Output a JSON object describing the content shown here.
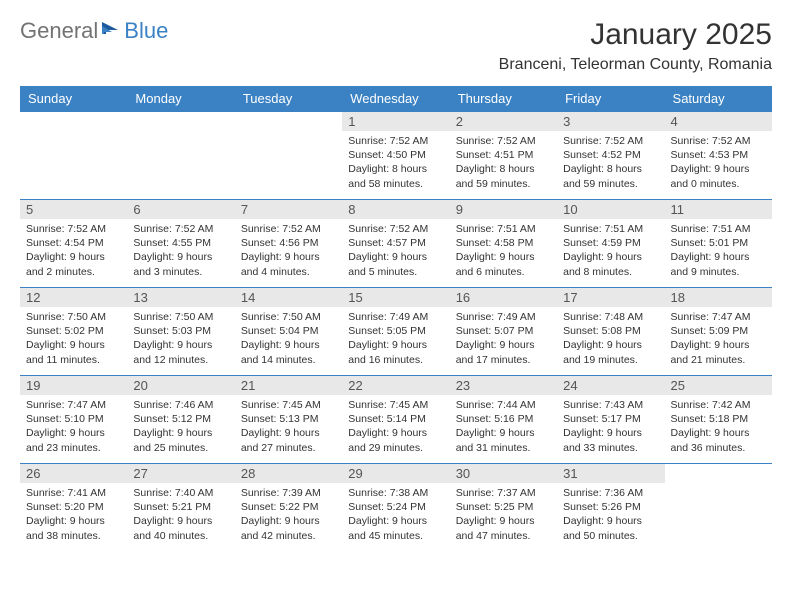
{
  "logo": {
    "general": "General",
    "blue": "Blue"
  },
  "title": "January 2025",
  "location": "Branceni, Teleorman County, Romania",
  "colors": {
    "header_bg": "#3b82c4",
    "header_text": "#ffffff",
    "daynum_bg": "#e8e8e8",
    "daynum_text": "#555555",
    "body_text": "#333333",
    "border": "#3b82c4",
    "logo_gray": "#737373",
    "logo_blue": "#3b82c4",
    "page_bg": "#ffffff"
  },
  "day_headers": [
    "Sunday",
    "Monday",
    "Tuesday",
    "Wednesday",
    "Thursday",
    "Friday",
    "Saturday"
  ],
  "weeks": [
    [
      {
        "n": "",
        "sr": "",
        "ss": "",
        "dl": ""
      },
      {
        "n": "",
        "sr": "",
        "ss": "",
        "dl": ""
      },
      {
        "n": "",
        "sr": "",
        "ss": "",
        "dl": ""
      },
      {
        "n": "1",
        "sr": "7:52 AM",
        "ss": "4:50 PM",
        "dl": "8 hours and 58 minutes."
      },
      {
        "n": "2",
        "sr": "7:52 AM",
        "ss": "4:51 PM",
        "dl": "8 hours and 59 minutes."
      },
      {
        "n": "3",
        "sr": "7:52 AM",
        "ss": "4:52 PM",
        "dl": "8 hours and 59 minutes."
      },
      {
        "n": "4",
        "sr": "7:52 AM",
        "ss": "4:53 PM",
        "dl": "9 hours and 0 minutes."
      }
    ],
    [
      {
        "n": "5",
        "sr": "7:52 AM",
        "ss": "4:54 PM",
        "dl": "9 hours and 2 minutes."
      },
      {
        "n": "6",
        "sr": "7:52 AM",
        "ss": "4:55 PM",
        "dl": "9 hours and 3 minutes."
      },
      {
        "n": "7",
        "sr": "7:52 AM",
        "ss": "4:56 PM",
        "dl": "9 hours and 4 minutes."
      },
      {
        "n": "8",
        "sr": "7:52 AM",
        "ss": "4:57 PM",
        "dl": "9 hours and 5 minutes."
      },
      {
        "n": "9",
        "sr": "7:51 AM",
        "ss": "4:58 PM",
        "dl": "9 hours and 6 minutes."
      },
      {
        "n": "10",
        "sr": "7:51 AM",
        "ss": "4:59 PM",
        "dl": "9 hours and 8 minutes."
      },
      {
        "n": "11",
        "sr": "7:51 AM",
        "ss": "5:01 PM",
        "dl": "9 hours and 9 minutes."
      }
    ],
    [
      {
        "n": "12",
        "sr": "7:50 AM",
        "ss": "5:02 PM",
        "dl": "9 hours and 11 minutes."
      },
      {
        "n": "13",
        "sr": "7:50 AM",
        "ss": "5:03 PM",
        "dl": "9 hours and 12 minutes."
      },
      {
        "n": "14",
        "sr": "7:50 AM",
        "ss": "5:04 PM",
        "dl": "9 hours and 14 minutes."
      },
      {
        "n": "15",
        "sr": "7:49 AM",
        "ss": "5:05 PM",
        "dl": "9 hours and 16 minutes."
      },
      {
        "n": "16",
        "sr": "7:49 AM",
        "ss": "5:07 PM",
        "dl": "9 hours and 17 minutes."
      },
      {
        "n": "17",
        "sr": "7:48 AM",
        "ss": "5:08 PM",
        "dl": "9 hours and 19 minutes."
      },
      {
        "n": "18",
        "sr": "7:47 AM",
        "ss": "5:09 PM",
        "dl": "9 hours and 21 minutes."
      }
    ],
    [
      {
        "n": "19",
        "sr": "7:47 AM",
        "ss": "5:10 PM",
        "dl": "9 hours and 23 minutes."
      },
      {
        "n": "20",
        "sr": "7:46 AM",
        "ss": "5:12 PM",
        "dl": "9 hours and 25 minutes."
      },
      {
        "n": "21",
        "sr": "7:45 AM",
        "ss": "5:13 PM",
        "dl": "9 hours and 27 minutes."
      },
      {
        "n": "22",
        "sr": "7:45 AM",
        "ss": "5:14 PM",
        "dl": "9 hours and 29 minutes."
      },
      {
        "n": "23",
        "sr": "7:44 AM",
        "ss": "5:16 PM",
        "dl": "9 hours and 31 minutes."
      },
      {
        "n": "24",
        "sr": "7:43 AM",
        "ss": "5:17 PM",
        "dl": "9 hours and 33 minutes."
      },
      {
        "n": "25",
        "sr": "7:42 AM",
        "ss": "5:18 PM",
        "dl": "9 hours and 36 minutes."
      }
    ],
    [
      {
        "n": "26",
        "sr": "7:41 AM",
        "ss": "5:20 PM",
        "dl": "9 hours and 38 minutes."
      },
      {
        "n": "27",
        "sr": "7:40 AM",
        "ss": "5:21 PM",
        "dl": "9 hours and 40 minutes."
      },
      {
        "n": "28",
        "sr": "7:39 AM",
        "ss": "5:22 PM",
        "dl": "9 hours and 42 minutes."
      },
      {
        "n": "29",
        "sr": "7:38 AM",
        "ss": "5:24 PM",
        "dl": "9 hours and 45 minutes."
      },
      {
        "n": "30",
        "sr": "7:37 AM",
        "ss": "5:25 PM",
        "dl": "9 hours and 47 minutes."
      },
      {
        "n": "31",
        "sr": "7:36 AM",
        "ss": "5:26 PM",
        "dl": "9 hours and 50 minutes."
      },
      {
        "n": "",
        "sr": "",
        "ss": "",
        "dl": ""
      }
    ]
  ],
  "labels": {
    "sunrise": "Sunrise:",
    "sunset": "Sunset:",
    "daylight": "Daylight:"
  }
}
